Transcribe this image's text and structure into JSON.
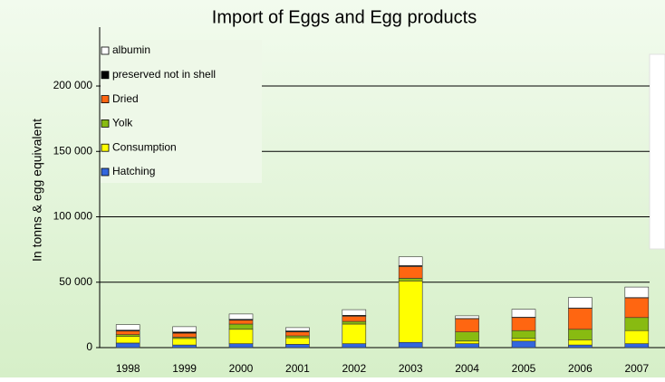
{
  "chart_data": {
    "type": "stacked_bar",
    "title": "Import of Eggs and Egg products",
    "y_label": "In tonns & egg equivalent",
    "categories": [
      "1998",
      "1999",
      "2000",
      "2001",
      "2002",
      "2003",
      "2004",
      "2005",
      "2006",
      "2007"
    ],
    "series": [
      {
        "name": "Hatching",
        "color": "#3366dd",
        "values": [
          3500,
          2000,
          3000,
          2500,
          3000,
          4000,
          3000,
          5000,
          2000,
          3000
        ]
      },
      {
        "name": "Consumption",
        "color": "#ffff00",
        "values": [
          5000,
          5000,
          11000,
          5000,
          15000,
          47000,
          2000,
          2000,
          4000,
          10000
        ]
      },
      {
        "name": "Yolk",
        "color": "#88bb11",
        "values": [
          1400,
          1000,
          4000,
          1500,
          2000,
          2000,
          7000,
          6000,
          8000,
          10000
        ]
      },
      {
        "name": "Dried",
        "color": "#ff6611",
        "values": [
          2800,
          3000,
          3000,
          3000,
          4000,
          9000,
          10000,
          10000,
          16000,
          15000
        ]
      },
      {
        "name": "preserved not in shell",
        "color": "#000000",
        "values": [
          700,
          1000,
          700,
          800,
          700,
          700,
          300,
          300,
          300,
          300
        ]
      },
      {
        "name": "albumin",
        "color": "#ffffff",
        "values": [
          4200,
          4000,
          4000,
          2500,
          4300,
          6700,
          2000,
          6000,
          8000,
          8000
        ]
      }
    ],
    "ylim": [
      0,
      245000
    ],
    "yticks": [
      0,
      {
        "value": 50000,
        "label": "50 000"
      },
      {
        "value": 100000,
        "label": "100 000"
      },
      {
        "value": 150000,
        "label": "150 000"
      },
      {
        "value": 200000,
        "label": "200 000"
      }
    ],
    "grid": true,
    "legend": "upper left"
  }
}
